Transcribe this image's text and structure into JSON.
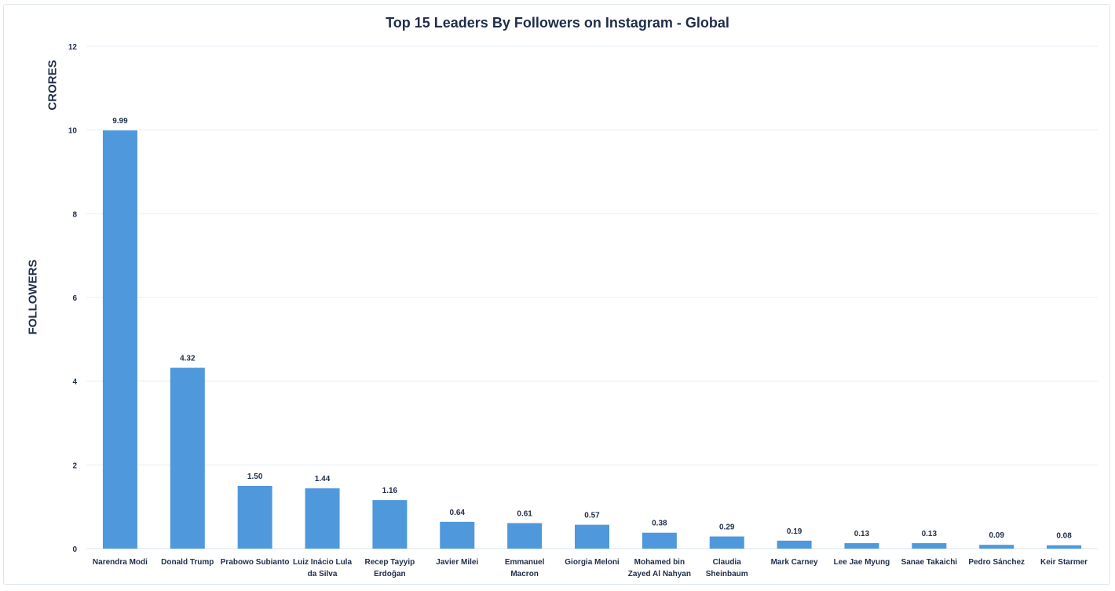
{
  "chart_data": {
    "type": "bar",
    "title": "Top 15 Leaders By Followers on Instagram - Global",
    "ylabel": "FOLLOWERS",
    "yunits_label": "CRORES",
    "xlabel": "",
    "ylim": [
      0,
      12
    ],
    "yticks": [
      0,
      2,
      4,
      6,
      8,
      10,
      12
    ],
    "grid": true,
    "bar_color": "#4f98dc",
    "categories": [
      "Narendra Modi",
      "Donald Trump",
      "Prabowo Subianto",
      "Luiz Inácio Lula da Silva",
      "Recep Tayyip Erdoğan",
      "Javier Milei",
      "Emmanuel Macron",
      "Giorgia Meloni",
      "Mohamed bin Zayed Al Nahyan",
      "Claudia Sheinbaum",
      "Mark Carney",
      "Lee Jae Myung",
      "Sanae Takaichi",
      "Pedro Sánchez",
      "Keir Starmer"
    ],
    "values": [
      9.99,
      4.32,
      1.5,
      1.44,
      1.16,
      0.64,
      0.61,
      0.57,
      0.38,
      0.29,
      0.19,
      0.13,
      0.13,
      0.09,
      0.08
    ],
    "data_labels": [
      "9.99",
      "4.32",
      "1.50",
      "1.44",
      "1.16",
      "0.64",
      "0.61",
      "0.57",
      "0.38",
      "0.29",
      "0.19",
      "0.13",
      "0.13",
      "0.09",
      "0.08"
    ]
  }
}
